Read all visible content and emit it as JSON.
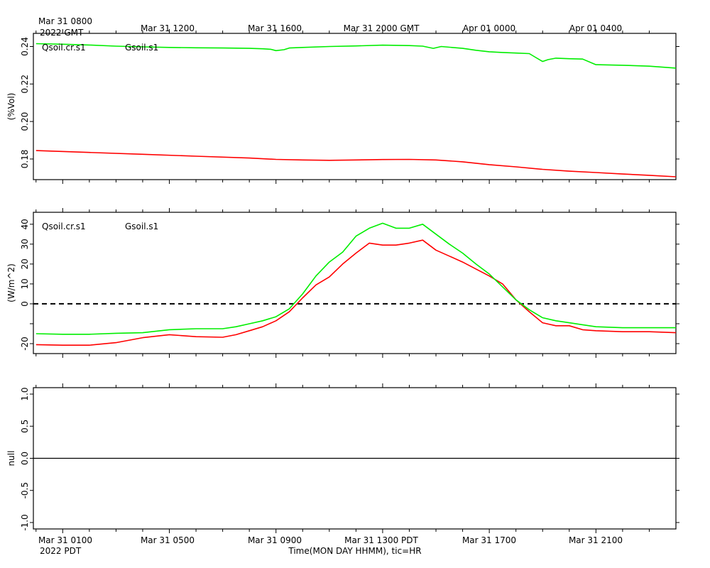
{
  "chart_data": {
    "type": "line",
    "top_axis": {
      "ticks": [
        "Mar 31 0800",
        "Mar 31 1200",
        "Mar 31 1600",
        "Mar 31 2000 GMT",
        "Apr 01 0000",
        "Apr 01 0400"
      ],
      "year_label": "2022 GMT"
    },
    "bottom_axis": {
      "ticks": [
        "Mar 31 0100",
        "Mar 31 0500",
        "Mar 31 0900",
        "Mar 31 1300 PDT",
        "Mar 31 1700",
        "Mar 31 2100"
      ],
      "year_label": "2022 PDT",
      "xlabel": "Time(MON DAY HHMM), tic=HR"
    },
    "x_unit": "hours after Mar 31 0000 PDT",
    "xlim": [
      -0.1,
      24.0
    ],
    "panels": [
      {
        "ylabel": "(%Vol)",
        "ylim": [
          0.169,
          0.247
        ],
        "yticks": [
          0.18,
          0.2,
          0.22,
          0.24
        ],
        "ytick_labels": [
          "0.18",
          "0.20",
          "0.22",
          "0.24"
        ],
        "series": [
          {
            "name": "Qsoil.cr.s1",
            "color": "#ff0000",
            "x": [
              0,
              2,
              4,
              6,
              8,
              9,
              10,
              11,
              12,
              13,
              14,
              15,
              16,
              17,
              18,
              19,
              20,
              21,
              22,
              23,
              24
            ],
            "y": [
              0.1845,
              0.1835,
              0.1825,
              0.1815,
              0.1805,
              0.1798,
              0.1795,
              0.1793,
              0.1795,
              0.1797,
              0.1798,
              0.1795,
              0.1785,
              0.177,
              0.1758,
              0.1745,
              0.1735,
              0.1728,
              0.172,
              0.1713,
              0.1705
            ]
          },
          {
            "name": "Gsoil.s1",
            "color": "#00ee00",
            "x": [
              0,
              1,
              2,
              3,
              4,
              5,
              6,
              7,
              8,
              8.5,
              8.8,
              9,
              9.3,
              9.5,
              10,
              11,
              12,
              13,
              14,
              14.5,
              14.9,
              15.2,
              16,
              16.5,
              17,
              17.5,
              18,
              18.5,
              18.7,
              19,
              19.2,
              19.5,
              20,
              20.5,
              21,
              22,
              23,
              24
            ],
            "y": [
              0.2415,
              0.2412,
              0.2408,
              0.2402,
              0.2398,
              0.2395,
              0.2393,
              0.2392,
              0.239,
              0.2388,
              0.2385,
              0.2378,
              0.2383,
              0.2392,
              0.2395,
              0.24,
              0.2403,
              0.2407,
              0.2405,
              0.2402,
              0.239,
              0.24,
              0.239,
              0.238,
              0.2372,
              0.2368,
              0.2365,
              0.2362,
              0.2345,
              0.232,
              0.233,
              0.2338,
              0.2335,
              0.2333,
              0.2303,
              0.23,
              0.2295,
              0.2285
            ]
          }
        ]
      },
      {
        "ylabel": "(W/m^2)",
        "ylim": [
          -25,
          46
        ],
        "yticks": [
          -20,
          -10,
          0,
          10,
          20,
          30,
          40
        ],
        "ytick_labels": [
          "-20",
          "",
          "0",
          "10",
          "20",
          "30",
          "40"
        ],
        "zero_line": "dashed",
        "series": [
          {
            "name": "Qsoil.cr.s1",
            "color": "#ff0000",
            "x": [
              0,
              1,
              2,
              3,
              4,
              5,
              6,
              7,
              7.5,
              8,
              8.5,
              9,
              9.5,
              10,
              10.5,
              11,
              11.5,
              12,
              12.5,
              13,
              13.5,
              14,
              14.5,
              15,
              15.5,
              16,
              16.5,
              17,
              17.5,
              18,
              18.5,
              19,
              19.5,
              20,
              20.5,
              21,
              22,
              23,
              24
            ],
            "y": [
              -20.5,
              -20.8,
              -20.8,
              -19.5,
              -17,
              -15.5,
              -16.5,
              -16.8,
              -15.5,
              -13.5,
              -11.5,
              -8.5,
              -4,
              3,
              9.5,
              13.5,
              20,
              25.5,
              30.5,
              29.5,
              29.5,
              30.5,
              32,
              27,
              24,
              21,
              17.5,
              14,
              10,
              2,
              -4,
              -9.5,
              -11,
              -11,
              -13,
              -13.5,
              -14,
              -14,
              -14.5
            ]
          },
          {
            "name": "Gsoil.s1",
            "color": "#00ee00",
            "x": [
              0,
              1,
              2,
              3,
              4,
              5,
              6,
              7,
              7.5,
              8,
              8.5,
              9,
              9.5,
              10,
              10.5,
              11,
              11.5,
              12,
              12.5,
              13,
              13.5,
              14,
              14.5,
              15,
              15.5,
              16,
              16.5,
              17,
              17.5,
              18,
              18.5,
              19,
              19.5,
              20,
              20.5,
              21,
              22,
              23,
              24
            ],
            "y": [
              -15,
              -15.3,
              -15.3,
              -14.8,
              -14.5,
              -13,
              -12.5,
              -12.5,
              -11.5,
              -10,
              -8.5,
              -6.5,
              -2.5,
              5,
              14,
              21,
              26,
              34,
              38,
              40.5,
              38,
              38,
              40,
              35,
              30,
              25.5,
              20,
              15,
              8.5,
              2,
              -3,
              -7,
              -8.5,
              -9.5,
              -10.5,
              -11.5,
              -12,
              -12,
              -12
            ]
          }
        ]
      },
      {
        "ylabel": "null",
        "ylim": [
          -1.1,
          1.1
        ],
        "yticks": [
          -1.0,
          -0.5,
          0.0,
          0.5,
          1.0
        ],
        "ytick_labels": [
          "-1.0",
          "-0.5",
          "0.0",
          "0.5",
          "1.0"
        ],
        "zero_line": "solid",
        "series": []
      }
    ]
  }
}
